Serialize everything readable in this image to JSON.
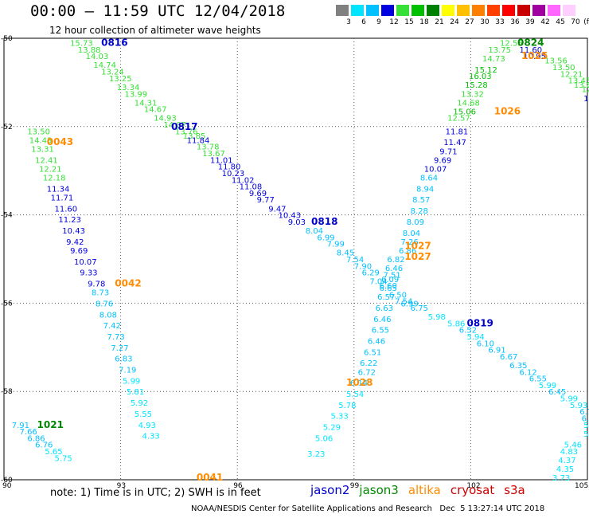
{
  "header": {
    "title": "00:00 – 11:59 UTC 12/04/2018",
    "subtitle": "12 hour collection of altimeter wave heights"
  },
  "colorbar": {
    "unit": "(ft)",
    "labels": [
      "3",
      "6",
      "9",
      "12",
      "15",
      "18",
      "21",
      "24",
      "27",
      "30",
      "33",
      "36",
      "39",
      "42",
      "45",
      "70"
    ],
    "colors": [
      "#808080",
      "#00e5ff",
      "#00c0ff",
      "#0000e0",
      "#36e036",
      "#00c000",
      "#008000",
      "#ffff00",
      "#ffc000",
      "#ff8000",
      "#ff4000",
      "#ff0000",
      "#c80000",
      "#a000a0",
      "#ff66ff",
      "#ffd0ff"
    ]
  },
  "note": "note: 1) Time is in UTC; 2) SWH is in feet",
  "legend": [
    {
      "label": "jason2",
      "color": "#0000cc"
    },
    {
      "label": "jason3",
      "color": "#008800"
    },
    {
      "label": "altika",
      "color": "#ff8c00"
    },
    {
      "label": "cryosat",
      "color": "#cc0000"
    },
    {
      "label": "s3a",
      "color": "#cc0000"
    }
  ],
  "credit": "NOAA/NESDIS Center for Satellite Applications and Research   Dec  5 13:27:14 UTC 2018",
  "chart_data": {
    "type": "scatter",
    "title": "00:00 – 11:59 UTC 12/04/2018",
    "subtitle": "12 hour collection of altimeter wave heights",
    "xlim": [
      90,
      105
    ],
    "ylim": [
      -60,
      -50
    ],
    "x_ticks": [
      "90",
      "93",
      "96",
      "99",
      "102",
      "105"
    ],
    "y_ticks": [
      "-50",
      "-52",
      "-54",
      "-56",
      "-58",
      "-60"
    ],
    "grid": true,
    "grid_style": "dotted",
    "points": [
      {
        "x": 91.7,
        "y": -50.1,
        "v": "15.73",
        "c": "#36e036"
      },
      {
        "x": 91.9,
        "y": -50.25,
        "v": "13.88",
        "c": "#36e036"
      },
      {
        "x": 92.1,
        "y": -50.4,
        "v": "14.03",
        "c": "#36e036"
      },
      {
        "x": 92.3,
        "y": -50.6,
        "v": "14.74",
        "c": "#36e036"
      },
      {
        "x": 92.5,
        "y": -50.75,
        "v": "13.24",
        "c": "#36e036"
      },
      {
        "x": 92.7,
        "y": -50.9,
        "v": "13.25",
        "c": "#36e036"
      },
      {
        "x": 92.9,
        "y": -51.1,
        "v": "13.34",
        "c": "#36e036"
      },
      {
        "x": 93.1,
        "y": -51.25,
        "v": "13.99",
        "c": "#36e036"
      },
      {
        "x": 93.35,
        "y": -51.45,
        "v": "14.31",
        "c": "#36e036"
      },
      {
        "x": 93.6,
        "y": -51.6,
        "v": "14.67",
        "c": "#36e036"
      },
      {
        "x": 93.85,
        "y": -51.8,
        "v": "14.93",
        "c": "#36e036"
      },
      {
        "x": 94.1,
        "y": -51.95,
        "v": "14.07",
        "c": "#36e036"
      },
      {
        "x": 94.4,
        "y": -52.1,
        "v": "13.76",
        "c": "#36e036"
      },
      {
        "x": 94.6,
        "y": -52.2,
        "v": "13.85",
        "c": "#36e036"
      },
      {
        "x": 94.7,
        "y": -52.3,
        "v": "11.84",
        "c": "#0000e0"
      },
      {
        "x": 94.95,
        "y": -52.45,
        "v": "13.78",
        "c": "#36e036"
      },
      {
        "x": 95.1,
        "y": -52.6,
        "v": "13.67",
        "c": "#36e036"
      },
      {
        "x": 95.3,
        "y": -52.75,
        "v": "11.01",
        "c": "#0000e0"
      },
      {
        "x": 95.5,
        "y": -52.9,
        "v": "11.80",
        "c": "#0000e0"
      },
      {
        "x": 95.6,
        "y": -53.05,
        "v": "10.23",
        "c": "#0000e0"
      },
      {
        "x": 95.85,
        "y": -53.2,
        "v": "11.02",
        "c": "#0000e0"
      },
      {
        "x": 96.05,
        "y": -53.35,
        "v": "11.08",
        "c": "#0000e0"
      },
      {
        "x": 96.3,
        "y": -53.5,
        "v": "9.69",
        "c": "#0000e0"
      },
      {
        "x": 96.5,
        "y": -53.65,
        "v": "9.77",
        "c": "#0000e0"
      },
      {
        "x": 96.8,
        "y": -53.85,
        "v": "9.47",
        "c": "#0000e0"
      },
      {
        "x": 97.05,
        "y": -54.0,
        "v": "10.43",
        "c": "#0000e0"
      },
      {
        "x": 97.3,
        "y": -54.15,
        "v": "9.03",
        "c": "#0000e0"
      },
      {
        "x": 97.75,
        "y": -54.35,
        "v": "8.04",
        "c": "#00c0ff"
      },
      {
        "x": 98.05,
        "y": -54.5,
        "v": "6.99",
        "c": "#00c0ff"
      },
      {
        "x": 98.3,
        "y": -54.65,
        "v": "7.99",
        "c": "#00c0ff"
      },
      {
        "x": 98.55,
        "y": -54.85,
        "v": "8.45",
        "c": "#00c0ff"
      },
      {
        "x": 98.8,
        "y": -55.0,
        "v": "7.54",
        "c": "#00c0ff"
      },
      {
        "x": 99.0,
        "y": -55.15,
        "v": "7.90",
        "c": "#00c0ff"
      },
      {
        "x": 99.2,
        "y": -55.3,
        "v": "6.29",
        "c": "#00c0ff"
      },
      {
        "x": 99.4,
        "y": -55.5,
        "v": "7.04",
        "c": "#00c0ff"
      },
      {
        "x": 99.65,
        "y": -55.65,
        "v": "6.65",
        "c": "#00c0ff"
      },
      {
        "x": 99.9,
        "y": -55.8,
        "v": "6.50",
        "c": "#00c0ff"
      },
      {
        "x": 100.05,
        "y": -55.95,
        "v": "7.54",
        "c": "#00c0ff"
      },
      {
        "x": 100.2,
        "y": -56.0,
        "v": "6.99",
        "c": "#00c0ff"
      },
      {
        "x": 100.45,
        "y": -56.1,
        "v": "6.75",
        "c": "#00c0ff"
      },
      {
        "x": 100.9,
        "y": -56.3,
        "v": "5.98",
        "c": "#00e5ff"
      },
      {
        "x": 101.4,
        "y": -56.45,
        "v": "5.86",
        "c": "#00e5ff"
      },
      {
        "x": 101.7,
        "y": -56.6,
        "v": "6.52",
        "c": "#00c0ff"
      },
      {
        "x": 101.9,
        "y": -56.75,
        "v": "5.94",
        "c": "#00e5ff"
      },
      {
        "x": 102.15,
        "y": -56.9,
        "v": "6.10",
        "c": "#00c0ff"
      },
      {
        "x": 102.45,
        "y": -57.05,
        "v": "6.91",
        "c": "#00c0ff"
      },
      {
        "x": 102.75,
        "y": -57.2,
        "v": "6.67",
        "c": "#00c0ff"
      },
      {
        "x": 103.0,
        "y": -57.4,
        "v": "6.35",
        "c": "#00c0ff"
      },
      {
        "x": 103.25,
        "y": -57.55,
        "v": "6.12",
        "c": "#00c0ff"
      },
      {
        "x": 103.5,
        "y": -57.7,
        "v": "6.55",
        "c": "#00c0ff"
      },
      {
        "x": 103.75,
        "y": -57.85,
        "v": "5.99",
        "c": "#00e5ff"
      },
      {
        "x": 104.0,
        "y": -58.0,
        "v": "6.45",
        "c": "#00c0ff"
      },
      {
        "x": 104.3,
        "y": -58.15,
        "v": "5.99",
        "c": "#00e5ff"
      },
      {
        "x": 104.55,
        "y": -58.3,
        "v": "5.93",
        "c": "#00e5ff"
      },
      {
        "x": 104.8,
        "y": -58.45,
        "v": "6.75",
        "c": "#00c0ff"
      },
      {
        "x": 104.85,
        "y": -58.6,
        "v": "6.14",
        "c": "#00c0ff"
      },
      {
        "x": 104.9,
        "y": -58.75,
        "v": "5.7",
        "c": "#00e5ff"
      },
      {
        "x": 104.9,
        "y": -58.95,
        "v": "5.38",
        "c": "#00e5ff"
      },
      {
        "x": 104.4,
        "y": -59.2,
        "v": "5.46",
        "c": "#00e5ff"
      },
      {
        "x": 104.3,
        "y": -59.35,
        "v": "4.83",
        "c": "#00e5ff"
      },
      {
        "x": 104.25,
        "y": -59.55,
        "v": "4.37",
        "c": "#00e5ff"
      },
      {
        "x": 104.2,
        "y": -59.75,
        "v": "4.35",
        "c": "#00e5ff"
      },
      {
        "x": 104.1,
        "y": -59.95,
        "v": "3.73",
        "c": "#00e5ff"
      },
      {
        "x": 102.75,
        "y": -50.1,
        "v": "12.55",
        "c": "#36e036"
      },
      {
        "x": 102.45,
        "y": -50.25,
        "v": "13.75",
        "c": "#36e036"
      },
      {
        "x": 103.25,
        "y": -50.25,
        "v": "11.60",
        "c": "#0000e0"
      },
      {
        "x": 103.35,
        "y": -50.4,
        "v": "10.95",
        "c": "#0000e0"
      },
      {
        "x": 102.3,
        "y": -50.45,
        "v": "14.73",
        "c": "#36e036"
      },
      {
        "x": 103.9,
        "y": -50.5,
        "v": "13.56",
        "c": "#36e036"
      },
      {
        "x": 104.1,
        "y": -50.65,
        "v": "13.50",
        "c": "#36e036"
      },
      {
        "x": 104.3,
        "y": -50.8,
        "v": "12.21",
        "c": "#36e036"
      },
      {
        "x": 104.5,
        "y": -50.95,
        "v": "13.45",
        "c": "#36e036"
      },
      {
        "x": 104.65,
        "y": -51.05,
        "v": "13.87",
        "c": "#36e036"
      },
      {
        "x": 104.85,
        "y": -51.15,
        "v": "12.46",
        "c": "#36e036"
      },
      {
        "x": 104.9,
        "y": -51.35,
        "v": "11.",
        "c": "#0000e0"
      },
      {
        "x": 102.1,
        "y": -50.7,
        "v": "15.12",
        "c": "#00c000"
      },
      {
        "x": 101.95,
        "y": -50.85,
        "v": "16.03",
        "c": "#00c000"
      },
      {
        "x": 101.85,
        "y": -51.05,
        "v": "15.28",
        "c": "#00c000"
      },
      {
        "x": 101.75,
        "y": -51.25,
        "v": "13.32",
        "c": "#36e036"
      },
      {
        "x": 101.65,
        "y": -51.45,
        "v": "14.68",
        "c": "#36e036"
      },
      {
        "x": 101.55,
        "y": -51.65,
        "v": "15.06",
        "c": "#00c000"
      },
      {
        "x": 101.4,
        "y": -51.8,
        "v": "12.57",
        "c": "#36e036"
      },
      {
        "x": 101.35,
        "y": -52.1,
        "v": "11.81",
        "c": "#0000e0"
      },
      {
        "x": 101.3,
        "y": -52.35,
        "v": "11.47",
        "c": "#0000e0"
      },
      {
        "x": 101.2,
        "y": -52.55,
        "v": "9.71",
        "c": "#0000e0"
      },
      {
        "x": 101.05,
        "y": -52.75,
        "v": "9.69",
        "c": "#0000e0"
      },
      {
        "x": 100.8,
        "y": -52.95,
        "v": "10.07",
        "c": "#0000e0"
      },
      {
        "x": 100.7,
        "y": -53.15,
        "v": "8.64",
        "c": "#00c0ff"
      },
      {
        "x": 100.6,
        "y": -53.4,
        "v": "8.94",
        "c": "#00c0ff"
      },
      {
        "x": 100.5,
        "y": -53.65,
        "v": "8.57",
        "c": "#00c0ff"
      },
      {
        "x": 100.45,
        "y": -53.9,
        "v": "8.28",
        "c": "#00c0ff"
      },
      {
        "x": 100.35,
        "y": -54.15,
        "v": "8.09",
        "c": "#00c0ff"
      },
      {
        "x": 100.25,
        "y": -54.4,
        "v": "8.04",
        "c": "#00c0ff"
      },
      {
        "x": 100.2,
        "y": -54.6,
        "v": "7.26",
        "c": "#00c0ff"
      },
      {
        "x": 100.15,
        "y": -54.8,
        "v": "6.86",
        "c": "#00c0ff"
      },
      {
        "x": 99.85,
        "y": -55.0,
        "v": "6.82",
        "c": "#00c0ff"
      },
      {
        "x": 99.8,
        "y": -55.2,
        "v": "6.46",
        "c": "#00c0ff"
      },
      {
        "x": 99.75,
        "y": -55.35,
        "v": "7.51",
        "c": "#00c0ff"
      },
      {
        "x": 99.7,
        "y": -55.45,
        "v": "6.09",
        "c": "#00c0ff"
      },
      {
        "x": 99.65,
        "y": -55.6,
        "v": "6.60",
        "c": "#00c0ff"
      },
      {
        "x": 99.6,
        "y": -55.85,
        "v": "6.57",
        "c": "#00c0ff"
      },
      {
        "x": 99.55,
        "y": -56.1,
        "v": "6.63",
        "c": "#00c0ff"
      },
      {
        "x": 99.5,
        "y": -56.35,
        "v": "6.46",
        "c": "#00c0ff"
      },
      {
        "x": 99.45,
        "y": -56.6,
        "v": "6.55",
        "c": "#00c0ff"
      },
      {
        "x": 99.35,
        "y": -56.85,
        "v": "6.46",
        "c": "#00c0ff"
      },
      {
        "x": 99.25,
        "y": -57.1,
        "v": "6.51",
        "c": "#00c0ff"
      },
      {
        "x": 99.15,
        "y": -57.35,
        "v": "6.22",
        "c": "#00c0ff"
      },
      {
        "x": 99.1,
        "y": -57.55,
        "v": "6.72",
        "c": "#00c0ff"
      },
      {
        "x": 98.9,
        "y": -57.8,
        "v": "6.14",
        "c": "#00c0ff"
      },
      {
        "x": 98.8,
        "y": -58.05,
        "v": "5.54",
        "c": "#00e5ff"
      },
      {
        "x": 98.6,
        "y": -58.3,
        "v": "5.78",
        "c": "#00e5ff"
      },
      {
        "x": 98.4,
        "y": -58.55,
        "v": "5.33",
        "c": "#00e5ff"
      },
      {
        "x": 98.2,
        "y": -58.8,
        "v": "5.29",
        "c": "#00e5ff"
      },
      {
        "x": 98.0,
        "y": -59.05,
        "v": "5.06",
        "c": "#00e5ff"
      },
      {
        "x": 97.8,
        "y": -59.4,
        "v": "3.23",
        "c": "#00e5ff"
      },
      {
        "x": 90.6,
        "y": -52.1,
        "v": "13.50",
        "c": "#36e036"
      },
      {
        "x": 90.65,
        "y": -52.3,
        "v": "14.43",
        "c": "#36e036"
      },
      {
        "x": 90.7,
        "y": -52.5,
        "v": "13.31",
        "c": "#36e036"
      },
      {
        "x": 90.8,
        "y": -52.75,
        "v": "12.41",
        "c": "#36e036"
      },
      {
        "x": 90.9,
        "y": -52.95,
        "v": "12.21",
        "c": "#36e036"
      },
      {
        "x": 91.0,
        "y": -53.15,
        "v": "12.18",
        "c": "#36e036"
      },
      {
        "x": 91.1,
        "y": -53.4,
        "v": "11.34",
        "c": "#0000e0"
      },
      {
        "x": 91.2,
        "y": -53.6,
        "v": "11.71",
        "c": "#0000e0"
      },
      {
        "x": 91.3,
        "y": -53.85,
        "v": "11.60",
        "c": "#0000e0"
      },
      {
        "x": 91.4,
        "y": -54.1,
        "v": "11.23",
        "c": "#0000e0"
      },
      {
        "x": 91.5,
        "y": -54.35,
        "v": "10.43",
        "c": "#0000e0"
      },
      {
        "x": 91.6,
        "y": -54.6,
        "v": "9.42",
        "c": "#0000e0"
      },
      {
        "x": 91.7,
        "y": -54.8,
        "v": "9.69",
        "c": "#0000e0"
      },
      {
        "x": 91.8,
        "y": -55.05,
        "v": "10.07",
        "c": "#0000e0"
      },
      {
        "x": 91.95,
        "y": -55.3,
        "v": "9.33",
        "c": "#0000e0"
      },
      {
        "x": 92.15,
        "y": -55.55,
        "v": "9.78",
        "c": "#0000e0"
      },
      {
        "x": 92.25,
        "y": -55.75,
        "v": "8.73",
        "c": "#00c0ff"
      },
      {
        "x": 92.35,
        "y": -56.0,
        "v": "8.76",
        "c": "#00c0ff"
      },
      {
        "x": 92.45,
        "y": -56.25,
        "v": "8.08",
        "c": "#00c0ff"
      },
      {
        "x": 92.55,
        "y": -56.5,
        "v": "7.42",
        "c": "#00c0ff"
      },
      {
        "x": 92.65,
        "y": -56.75,
        "v": "7.73",
        "c": "#00c0ff"
      },
      {
        "x": 92.75,
        "y": -57.0,
        "v": "7.27",
        "c": "#00c0ff"
      },
      {
        "x": 92.85,
        "y": -57.25,
        "v": "6.83",
        "c": "#00c0ff"
      },
      {
        "x": 92.95,
        "y": -57.5,
        "v": "7.19",
        "c": "#00c0ff"
      },
      {
        "x": 93.05,
        "y": -57.75,
        "v": "5.99",
        "c": "#00e5ff"
      },
      {
        "x": 93.15,
        "y": -58.0,
        "v": "5.81",
        "c": "#00e5ff"
      },
      {
        "x": 93.25,
        "y": -58.25,
        "v": "5.92",
        "c": "#00e5ff"
      },
      {
        "x": 93.35,
        "y": -58.5,
        "v": "5.55",
        "c": "#00e5ff"
      },
      {
        "x": 93.45,
        "y": -58.75,
        "v": "4.93",
        "c": "#00e5ff"
      },
      {
        "x": 93.55,
        "y": -59.0,
        "v": "4.33",
        "c": "#00e5ff"
      },
      {
        "x": 90.2,
        "y": -58.75,
        "v": "7.91",
        "c": "#00c0ff"
      },
      {
        "x": 90.4,
        "y": -58.9,
        "v": "7.66",
        "c": "#00c0ff"
      },
      {
        "x": 90.6,
        "y": -59.05,
        "v": "6.86",
        "c": "#00c0ff"
      },
      {
        "x": 90.8,
        "y": -59.2,
        "v": "6.76",
        "c": "#00c0ff"
      },
      {
        "x": 91.05,
        "y": -59.35,
        "v": "5.65",
        "c": "#00e5ff"
      },
      {
        "x": 91.3,
        "y": -59.5,
        "v": "5.75",
        "c": "#00e5ff"
      }
    ],
    "pass_labels": [
      {
        "x": 92.5,
        "y": -50.1,
        "text": "0816",
        "c": "#0000cc"
      },
      {
        "x": 94.3,
        "y": -52.0,
        "text": "0817",
        "c": "#0000cc"
      },
      {
        "x": 97.9,
        "y": -54.15,
        "text": "0818",
        "c": "#0000cc"
      },
      {
        "x": 101.9,
        "y": -56.45,
        "text": "0819",
        "c": "#0000cc"
      },
      {
        "x": 103.2,
        "y": -50.1,
        "text": "0824",
        "c": "#008800"
      },
      {
        "x": 98.8,
        "y": -57.8,
        "text": "1028",
        "c": "#ff8c00"
      },
      {
        "x": 100.3,
        "y": -54.7,
        "text": "1027",
        "c": "#ff8c00"
      },
      {
        "x": 100.3,
        "y": -54.95,
        "text": "1027",
        "c": "#ff8c00"
      },
      {
        "x": 102.6,
        "y": -51.65,
        "text": "1026",
        "c": "#ff8c00"
      },
      {
        "x": 103.3,
        "y": -50.4,
        "text": "1025",
        "c": "#ff8c00"
      },
      {
        "x": 91.1,
        "y": -52.35,
        "text": "0043",
        "c": "#ff8c00"
      },
      {
        "x": 92.85,
        "y": -55.55,
        "text": "0042",
        "c": "#ff8c00"
      },
      {
        "x": 94.95,
        "y": -59.95,
        "text": "0041",
        "c": "#ff8c00"
      },
      {
        "x": 90.85,
        "y": -58.75,
        "text": "1021",
        "c": "#008800"
      }
    ]
  }
}
